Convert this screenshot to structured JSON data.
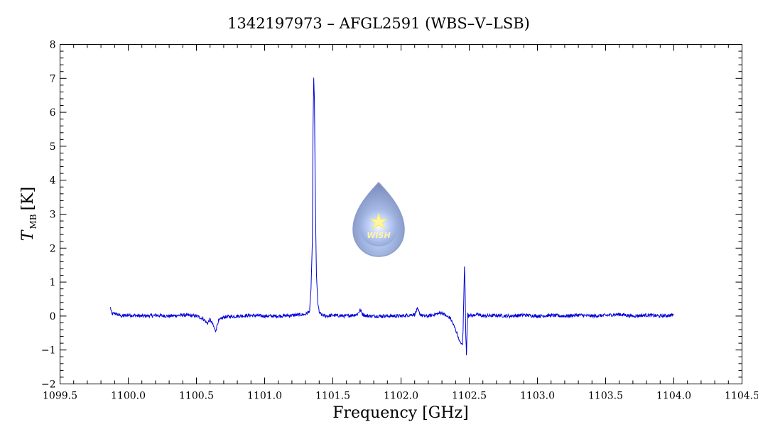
{
  "chart_data": {
    "type": "line",
    "title": "1342197973 – AFGL2591 (WBS–V–LSB)",
    "xlabel": "Frequency [GHz]",
    "ylabel_main": "T",
    "ylabel_sub": "MB",
    "ylabel_unit": "[K]",
    "xlim": [
      1099.5,
      1104.5
    ],
    "ylim": [
      -2,
      8
    ],
    "xticks": [
      1099.5,
      1100.0,
      1100.5,
      1101.0,
      1101.5,
      1102.0,
      1102.5,
      1103.0,
      1103.5,
      1104.0,
      1104.5
    ],
    "xtick_labels": [
      "1099.5",
      "1100.0",
      "1100.5",
      "1101.0",
      "1101.5",
      "1102.0",
      "1102.5",
      "1103.0",
      "1103.5",
      "1104.0",
      "1104.5"
    ],
    "yticks": [
      -2,
      -1,
      0,
      1,
      2,
      3,
      4,
      5,
      6,
      7,
      8
    ],
    "ytick_labels": [
      "−2",
      "−1",
      "0",
      "1",
      "2",
      "3",
      "4",
      "5",
      "6",
      "7",
      "8"
    ],
    "grid": false,
    "series": [
      {
        "color": "#0000dd",
        "x": [
          1099.87,
          1099.88,
          1099.9,
          1099.95,
          1100.0,
          1100.1,
          1100.2,
          1100.3,
          1100.4,
          1100.5,
          1100.55,
          1100.58,
          1100.6,
          1100.62,
          1100.64,
          1100.66,
          1100.7,
          1100.8,
          1100.9,
          1101.0,
          1101.1,
          1101.2,
          1101.3,
          1101.33,
          1101.34,
          1101.35,
          1101.355,
          1101.36,
          1101.365,
          1101.37,
          1101.375,
          1101.38,
          1101.39,
          1101.4,
          1101.42,
          1101.45,
          1101.5,
          1101.6,
          1101.68,
          1101.7,
          1101.72,
          1101.75,
          1101.8,
          1101.9,
          1102.0,
          1102.1,
          1102.12,
          1102.14,
          1102.16,
          1102.2,
          1102.25,
          1102.3,
          1102.33,
          1102.36,
          1102.4,
          1102.43,
          1102.45,
          1102.455,
          1102.46,
          1102.465,
          1102.47,
          1102.475,
          1102.48,
          1102.485,
          1102.49,
          1102.495,
          1102.5,
          1102.52,
          1102.55,
          1102.6,
          1102.7,
          1102.8,
          1102.9,
          1103.0,
          1103.1,
          1103.2,
          1103.3,
          1103.4,
          1103.5,
          1103.6,
          1103.7,
          1103.8,
          1103.9,
          1104.0
        ],
        "y": [
          0.25,
          0.05,
          0.08,
          0.0,
          0.03,
          0.0,
          0.02,
          0.0,
          0.03,
          0.0,
          -0.08,
          -0.22,
          -0.1,
          -0.25,
          -0.45,
          -0.15,
          -0.03,
          0.0,
          0.02,
          0.0,
          0.0,
          0.02,
          0.05,
          0.15,
          0.8,
          2.2,
          5.5,
          7.0,
          6.4,
          4.2,
          2.5,
          1.2,
          0.4,
          0.1,
          0.03,
          0.0,
          0.02,
          0.0,
          0.05,
          0.18,
          0.05,
          0.0,
          0.0,
          0.0,
          0.0,
          0.05,
          0.2,
          0.05,
          0.0,
          0.0,
          0.05,
          0.1,
          0.0,
          -0.05,
          -0.4,
          -0.75,
          -0.85,
          -0.4,
          0.5,
          1.45,
          0.8,
          -0.6,
          -1.15,
          -0.3,
          0.1,
          0.0,
          0.05,
          0.0,
          0.05,
          0.0,
          0.02,
          0.0,
          0.03,
          0.0,
          0.02,
          0.0,
          0.03,
          0.0,
          0.02,
          0.05,
          0.0,
          0.03,
          0.0,
          0.03
        ]
      }
    ]
  },
  "logo": {
    "name": "wish-logo",
    "text": "WISH"
  }
}
